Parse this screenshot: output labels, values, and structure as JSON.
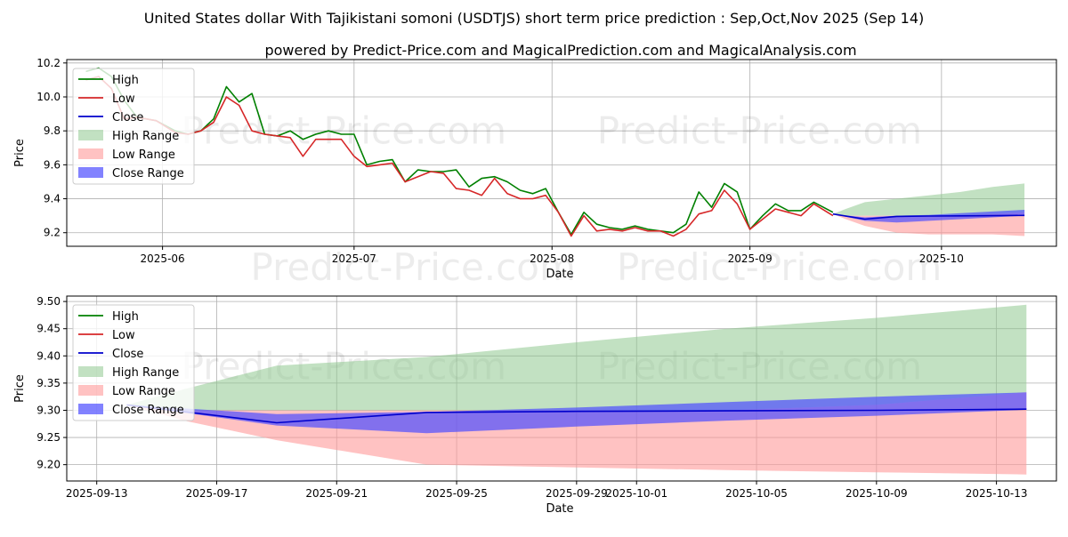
{
  "title": "United States dollar With Tajikistani somoni (USDTJS) short term price prediction : Sep,Oct,Nov 2025 (Sep 14)",
  "subtitle": "powered by Predict-Price.com and MagicalPrediction.com and MagicalAnalysis.com",
  "watermark": "Predict-Price.com",
  "colors": {
    "high": "#008000",
    "low": "#d62728",
    "close": "#0000cc",
    "high_range": "#8fc98f",
    "low_range": "#ff9999",
    "close_range": "#4d4dff"
  },
  "chart_data": [
    {
      "type": "line",
      "xlabel": "Date",
      "ylabel": "Price",
      "ylim": [
        9.12,
        10.22
      ],
      "xlim": [
        "2025-05-17",
        "2025-10-19"
      ],
      "yticks": [
        9.2,
        9.4,
        9.6,
        9.8,
        10.0,
        10.2
      ],
      "yticklabels": [
        "9.2",
        "9.4",
        "9.6",
        "9.8",
        "10.0",
        "10.2"
      ],
      "xticks": [
        "2025-06-01",
        "2025-07-01",
        "2025-08-01",
        "2025-09-01",
        "2025-10-01"
      ],
      "xticklabels": [
        "2025-06",
        "2025-07",
        "2025-08",
        "2025-09",
        "2025-10"
      ],
      "grid": true,
      "legend": {
        "position": "top-left",
        "entries": [
          "High",
          "Low",
          "Close",
          "High Range",
          "Low Range",
          "Close Range"
        ]
      },
      "series": [
        {
          "name": "High",
          "x": [
            "2025-05-20",
            "2025-05-22",
            "2025-05-24",
            "2025-05-26",
            "2025-05-28",
            "2025-05-31",
            "2025-06-03",
            "2025-06-05",
            "2025-06-07",
            "2025-06-09",
            "2025-06-11",
            "2025-06-13",
            "2025-06-15",
            "2025-06-17",
            "2025-06-19",
            "2025-06-21",
            "2025-06-23",
            "2025-06-25",
            "2025-06-27",
            "2025-06-29",
            "2025-07-01",
            "2025-07-03",
            "2025-07-05",
            "2025-07-07",
            "2025-07-09",
            "2025-07-11",
            "2025-07-13",
            "2025-07-15",
            "2025-07-17",
            "2025-07-19",
            "2025-07-21",
            "2025-07-23",
            "2025-07-25",
            "2025-07-27",
            "2025-07-29",
            "2025-07-31",
            "2025-08-02",
            "2025-08-04",
            "2025-08-06",
            "2025-08-08",
            "2025-08-10",
            "2025-08-12",
            "2025-08-14",
            "2025-08-16",
            "2025-08-18",
            "2025-08-20",
            "2025-08-22",
            "2025-08-24",
            "2025-08-26",
            "2025-08-28",
            "2025-08-30",
            "2025-09-01",
            "2025-09-03",
            "2025-09-05",
            "2025-09-07",
            "2025-09-09",
            "2025-09-11",
            "2025-09-14"
          ],
          "values": [
            10.15,
            10.17,
            10.12,
            9.98,
            9.88,
            9.86,
            9.8,
            9.78,
            9.8,
            9.87,
            10.06,
            9.97,
            10.02,
            9.78,
            9.77,
            9.8,
            9.75,
            9.78,
            9.8,
            9.78,
            9.78,
            9.6,
            9.62,
            9.63,
            9.5,
            9.57,
            9.56,
            9.56,
            9.57,
            9.47,
            9.52,
            9.53,
            9.5,
            9.45,
            9.43,
            9.46,
            9.32,
            9.19,
            9.32,
            9.25,
            9.23,
            9.22,
            9.24,
            9.22,
            9.21,
            9.2,
            9.25,
            9.44,
            9.35,
            9.49,
            9.44,
            9.22,
            9.3,
            9.37,
            9.33,
            9.33,
            9.38,
            9.32
          ]
        },
        {
          "name": "Low",
          "x": [
            "2025-05-20",
            "2025-05-22",
            "2025-05-24",
            "2025-05-26",
            "2025-05-28",
            "2025-05-31",
            "2025-06-03",
            "2025-06-05",
            "2025-06-07",
            "2025-06-09",
            "2025-06-11",
            "2025-06-13",
            "2025-06-15",
            "2025-06-17",
            "2025-06-19",
            "2025-06-21",
            "2025-06-23",
            "2025-06-25",
            "2025-06-27",
            "2025-06-29",
            "2025-07-01",
            "2025-07-03",
            "2025-07-05",
            "2025-07-07",
            "2025-07-09",
            "2025-07-11",
            "2025-07-13",
            "2025-07-15",
            "2025-07-17",
            "2025-07-19",
            "2025-07-21",
            "2025-07-23",
            "2025-07-25",
            "2025-07-27",
            "2025-07-29",
            "2025-07-31",
            "2025-08-02",
            "2025-08-04",
            "2025-08-06",
            "2025-08-08",
            "2025-08-10",
            "2025-08-12",
            "2025-08-14",
            "2025-08-16",
            "2025-08-18",
            "2025-08-20",
            "2025-08-22",
            "2025-08-24",
            "2025-08-26",
            "2025-08-28",
            "2025-08-30",
            "2025-09-01",
            "2025-09-03",
            "2025-09-05",
            "2025-09-07",
            "2025-09-09",
            "2025-09-11",
            "2025-09-14"
          ],
          "values": [
            10.1,
            10.12,
            10.05,
            9.87,
            9.88,
            9.86,
            9.79,
            9.78,
            9.8,
            9.85,
            10.0,
            9.95,
            9.8,
            9.78,
            9.77,
            9.76,
            9.65,
            9.75,
            9.75,
            9.75,
            9.65,
            9.59,
            9.6,
            9.61,
            9.5,
            9.53,
            9.56,
            9.55,
            9.46,
            9.45,
            9.42,
            9.52,
            9.43,
            9.4,
            9.4,
            9.42,
            9.32,
            9.18,
            9.3,
            9.21,
            9.22,
            9.21,
            9.23,
            9.21,
            9.21,
            9.18,
            9.22,
            9.31,
            9.33,
            9.45,
            9.37,
            9.22,
            9.28,
            9.34,
            9.32,
            9.3,
            9.37,
            9.3
          ]
        },
        {
          "name": "Close",
          "x": [
            "2025-09-14",
            "2025-09-19",
            "2025-09-24",
            "2025-09-29",
            "2025-10-04",
            "2025-10-09",
            "2025-10-14"
          ],
          "values": [
            9.31,
            9.28,
            9.296,
            9.298,
            9.299,
            9.3,
            9.302
          ]
        }
      ],
      "bands": [
        {
          "name": "High Range",
          "x": [
            "2025-09-14",
            "2025-09-16",
            "2025-09-19",
            "2025-09-24",
            "2025-09-29",
            "2025-10-04",
            "2025-10-09",
            "2025-10-14"
          ],
          "lower": [
            9.31,
            9.3,
            9.3,
            9.3,
            9.3,
            9.3,
            9.31,
            9.32
          ],
          "upper": [
            9.31,
            9.34,
            9.38,
            9.4,
            9.42,
            9.44,
            9.47,
            9.49
          ]
        },
        {
          "name": "Low Range",
          "x": [
            "2025-09-14",
            "2025-09-16",
            "2025-09-19",
            "2025-09-24",
            "2025-09-29",
            "2025-10-04",
            "2025-10-09",
            "2025-10-14"
          ],
          "lower": [
            9.31,
            9.28,
            9.24,
            9.2,
            9.19,
            9.19,
            9.19,
            9.18
          ],
          "upper": [
            9.31,
            9.3,
            9.3,
            9.3,
            9.3,
            9.3,
            9.31,
            9.32
          ]
        },
        {
          "name": "Close Range",
          "x": [
            "2025-09-14",
            "2025-09-19",
            "2025-09-24",
            "2025-09-29",
            "2025-10-04",
            "2025-10-09",
            "2025-10-14"
          ],
          "lower": [
            9.31,
            9.27,
            9.26,
            9.27,
            9.28,
            9.29,
            9.3
          ],
          "upper": [
            9.31,
            9.29,
            9.3,
            9.305,
            9.315,
            9.325,
            9.335
          ]
        }
      ]
    },
    {
      "type": "line",
      "xlabel": "Date",
      "ylabel": "Price",
      "ylim": [
        9.17,
        9.51
      ],
      "xlim": [
        "2025-09-12",
        "2025-10-15"
      ],
      "yticks": [
        9.2,
        9.25,
        9.3,
        9.35,
        9.4,
        9.45,
        9.5
      ],
      "yticklabels": [
        "9.20",
        "9.25",
        "9.30",
        "9.35",
        "9.40",
        "9.45",
        "9.50"
      ],
      "xticks": [
        "2025-09-13",
        "2025-09-17",
        "2025-09-21",
        "2025-09-25",
        "2025-09-29",
        "2025-10-01",
        "2025-10-05",
        "2025-10-09",
        "2025-10-13"
      ],
      "xticklabels": [
        "2025-09-13",
        "2025-09-17",
        "2025-09-21",
        "2025-09-25",
        "2025-09-29",
        "2025-10-01",
        "2025-10-05",
        "2025-10-09",
        "2025-10-13"
      ],
      "grid": true,
      "legend": {
        "position": "top-left",
        "entries": [
          "High",
          "Low",
          "Close",
          "High Range",
          "Low Range",
          "Close Range"
        ]
      },
      "series": [
        {
          "name": "Close",
          "x": [
            "2025-09-14",
            "2025-09-19",
            "2025-09-24",
            "2025-09-29",
            "2025-10-04",
            "2025-10-09",
            "2025-10-14"
          ],
          "values": [
            9.31,
            9.277,
            9.296,
            9.298,
            9.299,
            9.3,
            9.302
          ]
        }
      ],
      "bands": [
        {
          "name": "High Range",
          "x": [
            "2025-09-14",
            "2025-09-16",
            "2025-09-19",
            "2025-09-24",
            "2025-09-29",
            "2025-10-04",
            "2025-10-09",
            "2025-10-14"
          ],
          "lower": [
            9.31,
            9.3,
            9.3,
            9.3,
            9.3,
            9.3,
            9.31,
            9.333
          ],
          "upper": [
            9.31,
            9.34,
            9.382,
            9.398,
            9.425,
            9.45,
            9.47,
            9.494
          ]
        },
        {
          "name": "Low Range",
          "x": [
            "2025-09-14",
            "2025-09-16",
            "2025-09-19",
            "2025-09-24",
            "2025-09-29",
            "2025-10-04",
            "2025-10-09",
            "2025-10-14"
          ],
          "lower": [
            9.31,
            9.28,
            9.245,
            9.2,
            9.195,
            9.19,
            9.186,
            9.182
          ],
          "upper": [
            9.31,
            9.3,
            9.3,
            9.3,
            9.3,
            9.3,
            9.31,
            9.333
          ]
        },
        {
          "name": "Close Range",
          "x": [
            "2025-09-14",
            "2025-09-19",
            "2025-09-24",
            "2025-09-29",
            "2025-10-04",
            "2025-10-09",
            "2025-10-14"
          ],
          "lower": [
            9.31,
            9.272,
            9.258,
            9.27,
            9.281,
            9.29,
            9.301
          ],
          "upper": [
            9.31,
            9.293,
            9.297,
            9.305,
            9.315,
            9.325,
            9.333
          ]
        }
      ]
    }
  ]
}
